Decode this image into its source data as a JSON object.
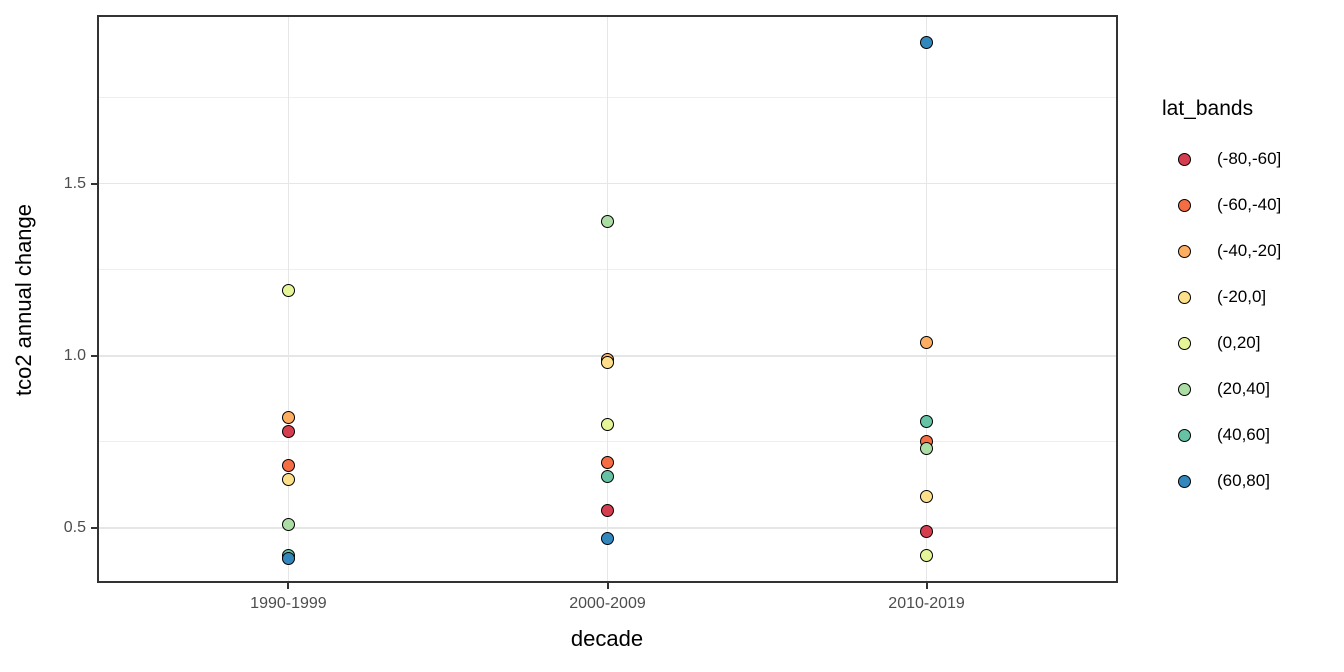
{
  "chart_data": {
    "type": "scatter",
    "title": "",
    "xlabel": "decade",
    "ylabel": "tco2 annual change",
    "categories": [
      "1990-1999",
      "2000-2009",
      "2010-2019"
    ],
    "y_ticks": [
      0.5,
      1.0,
      1.5
    ],
    "y_tick_labels": [
      "0.5",
      "1.0",
      "1.5"
    ],
    "y_minor_ticks": [
      0.75,
      1.25,
      1.75
    ],
    "ylim": [
      0.34,
      1.99
    ],
    "grid": true,
    "legend_title": "lat_bands",
    "legend_position": "right",
    "point_style": {
      "stroke": "#000000",
      "fill_outline_shape": "circle"
    },
    "panel_border_color": "#333333",
    "gridline_color": "#e6e6e6",
    "series": [
      {
        "name": "(-80,-60]",
        "color": "#D53E4F",
        "values": [
          0.78,
          0.55,
          0.49
        ]
      },
      {
        "name": "(-60,-40]",
        "color": "#F46D43",
        "values": [
          0.68,
          0.69,
          0.75
        ]
      },
      {
        "name": "(-40,-20]",
        "color": "#FDAE61",
        "values": [
          0.82,
          0.99,
          1.04
        ]
      },
      {
        "name": "(-20,0]",
        "color": "#FEE08B",
        "values": [
          0.64,
          0.98,
          0.59
        ]
      },
      {
        "name": "(0,20]",
        "color": "#E6F598",
        "values": [
          1.19,
          0.8,
          0.42
        ]
      },
      {
        "name": "(20,40]",
        "color": "#ABDDA4",
        "values": [
          0.51,
          1.39,
          0.73
        ]
      },
      {
        "name": "(40,60]",
        "color": "#66C2A5",
        "values": [
          0.42,
          0.65,
          0.81
        ]
      },
      {
        "name": "(60,80]",
        "color": "#3288BD",
        "values": [
          0.41,
          0.47,
          1.91
        ]
      }
    ]
  }
}
